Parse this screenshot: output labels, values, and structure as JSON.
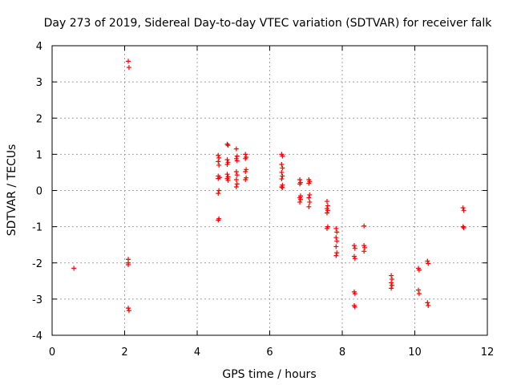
{
  "chart_data": {
    "type": "scatter",
    "title": "Day 273 of 2019, Sidereal Day-to-day VTEC variation (SDTVAR) for receiver falk",
    "xlabel": "GPS time / hours",
    "ylabel": "SDTVAR / TECUs",
    "xlim": [
      0,
      12
    ],
    "ylim": [
      -4,
      4
    ],
    "xticks": [
      "0",
      "2",
      "4",
      "6",
      "8",
      "10",
      "12"
    ],
    "yticks": [
      "-4",
      "-3",
      "-2",
      "-1",
      "0",
      "1",
      "2",
      "3",
      "4"
    ],
    "grid": true,
    "marker": "plus",
    "color": "#ff0000",
    "points": [
      [
        0.6,
        -2.15
      ],
      [
        2.1,
        3.57
      ],
      [
        2.12,
        3.4
      ],
      [
        2.1,
        -1.9
      ],
      [
        2.1,
        -2.0
      ],
      [
        2.1,
        -2.05
      ],
      [
        2.1,
        -3.25
      ],
      [
        2.12,
        -3.32
      ],
      [
        4.58,
        0.97
      ],
      [
        4.6,
        0.9
      ],
      [
        4.58,
        0.8
      ],
      [
        4.6,
        0.7
      ],
      [
        4.58,
        0.4
      ],
      [
        4.62,
        0.36
      ],
      [
        4.58,
        0.33
      ],
      [
        4.6,
        0.0
      ],
      [
        4.58,
        -0.08
      ],
      [
        4.6,
        -0.78
      ],
      [
        4.58,
        -0.82
      ],
      [
        4.83,
        1.28
      ],
      [
        4.85,
        1.25
      ],
      [
        4.83,
        0.85
      ],
      [
        4.85,
        0.78
      ],
      [
        4.83,
        0.72
      ],
      [
        4.83,
        0.45
      ],
      [
        4.85,
        0.38
      ],
      [
        4.83,
        0.33
      ],
      [
        4.85,
        0.28
      ],
      [
        5.08,
        1.15
      ],
      [
        5.1,
        0.95
      ],
      [
        5.08,
        0.88
      ],
      [
        5.1,
        0.82
      ],
      [
        5.08,
        0.52
      ],
      [
        5.1,
        0.43
      ],
      [
        5.08,
        0.3
      ],
      [
        5.1,
        0.18
      ],
      [
        5.08,
        0.1
      ],
      [
        5.33,
        1.0
      ],
      [
        5.35,
        0.92
      ],
      [
        5.33,
        0.88
      ],
      [
        5.35,
        0.58
      ],
      [
        5.33,
        0.52
      ],
      [
        5.35,
        0.35
      ],
      [
        5.33,
        0.3
      ],
      [
        6.33,
        1.0
      ],
      [
        6.35,
        0.95
      ],
      [
        6.33,
        0.72
      ],
      [
        6.35,
        0.62
      ],
      [
        6.33,
        0.5
      ],
      [
        6.35,
        0.4
      ],
      [
        6.33,
        0.32
      ],
      [
        6.35,
        0.15
      ],
      [
        6.33,
        0.1
      ],
      [
        6.35,
        0.08
      ],
      [
        6.83,
        0.3
      ],
      [
        6.85,
        0.22
      ],
      [
        6.83,
        0.18
      ],
      [
        6.85,
        -0.15
      ],
      [
        6.83,
        -0.2
      ],
      [
        6.85,
        -0.25
      ],
      [
        6.83,
        -0.32
      ],
      [
        7.08,
        0.3
      ],
      [
        7.1,
        0.25
      ],
      [
        7.08,
        0.2
      ],
      [
        7.1,
        -0.12
      ],
      [
        7.08,
        -0.2
      ],
      [
        7.1,
        -0.32
      ],
      [
        7.08,
        -0.45
      ],
      [
        7.58,
        -0.3
      ],
      [
        7.6,
        -0.42
      ],
      [
        7.58,
        -0.5
      ],
      [
        7.6,
        -0.55
      ],
      [
        7.58,
        -0.62
      ],
      [
        7.6,
        -1.0
      ],
      [
        7.58,
        -1.05
      ],
      [
        7.83,
        -1.05
      ],
      [
        7.85,
        -1.15
      ],
      [
        7.83,
        -1.3
      ],
      [
        7.85,
        -1.4
      ],
      [
        7.83,
        -1.55
      ],
      [
        7.85,
        -1.72
      ],
      [
        7.83,
        -1.8
      ],
      [
        8.33,
        -1.52
      ],
      [
        8.35,
        -1.6
      ],
      [
        8.33,
        -1.82
      ],
      [
        8.35,
        -1.88
      ],
      [
        8.33,
        -2.8
      ],
      [
        8.35,
        -2.85
      ],
      [
        8.33,
        -3.18
      ],
      [
        8.35,
        -3.22
      ],
      [
        8.6,
        -0.98
      ],
      [
        8.6,
        -1.52
      ],
      [
        8.62,
        -1.58
      ],
      [
        8.6,
        -1.68
      ],
      [
        9.35,
        -2.35
      ],
      [
        9.37,
        -2.45
      ],
      [
        9.35,
        -2.55
      ],
      [
        9.37,
        -2.62
      ],
      [
        9.35,
        -2.7
      ],
      [
        10.1,
        -2.15
      ],
      [
        10.12,
        -2.2
      ],
      [
        10.1,
        -2.75
      ],
      [
        10.12,
        -2.85
      ],
      [
        10.35,
        -1.95
      ],
      [
        10.37,
        -2.02
      ],
      [
        10.35,
        -3.1
      ],
      [
        10.37,
        -3.18
      ],
      [
        11.33,
        -0.48
      ],
      [
        11.35,
        -0.55
      ],
      [
        11.33,
        -1.0
      ],
      [
        11.35,
        -1.03
      ]
    ]
  }
}
